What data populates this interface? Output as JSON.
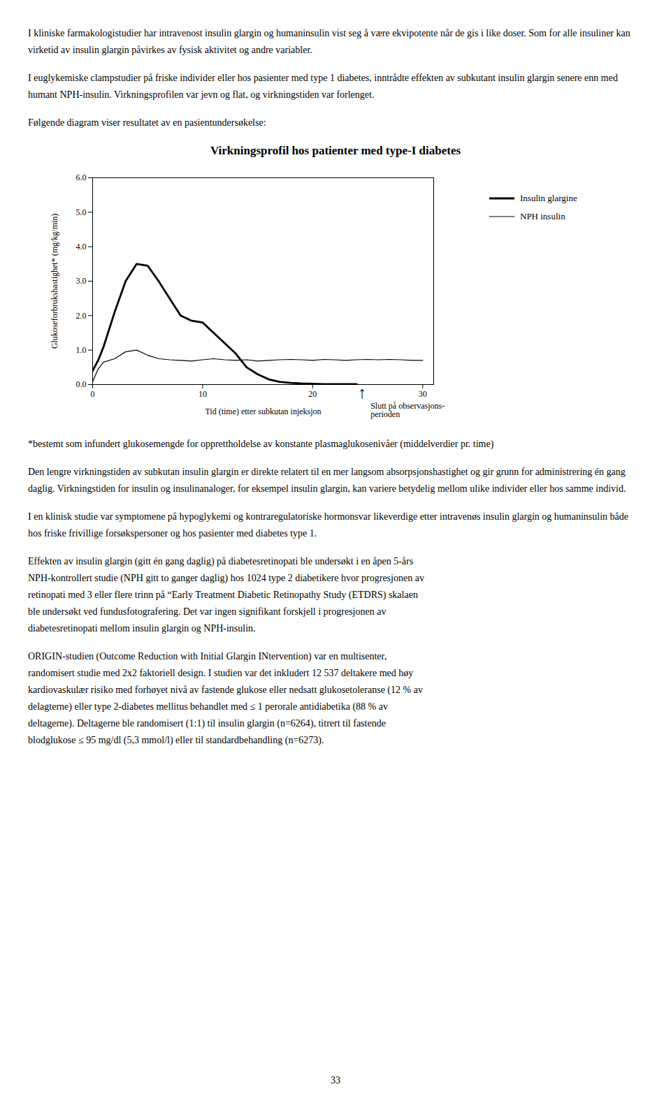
{
  "text_before": [
    [
      "I kliniske farmakologistudier har intravenost insulin glargin og humaninsulin vist seg å være ekvipotente når de gis i like doser. Som for alle insuliner kan virketid av insulin glargin påvirkes av fysisk aktivitet og andre variabler."
    ],
    [
      "I euglykemiske clampstudier på friske individer eller hos pasienter med type 1 diabetes, inntrådte effekten av subkutant insulin glargin senere enn med humant NPH-insulin. Virkningsprofilen var jevn og flat, og virkningstiden var forlenget."
    ],
    [
      "Følgende diagram viser resultatet av en pasientundersøkelse:"
    ]
  ],
  "chart_data": {
    "type": "line",
    "title": "Virkningsprofil hos patienter med type-I diabetes",
    "xlabel": "Tid (time) etter subkutan injeksjon",
    "ylabel": "Glukoseforbrukshastighet* (mg/kg/min)",
    "xlim": [
      0,
      31
    ],
    "ylim": [
      0,
      6
    ],
    "xticks": [
      0,
      10,
      20,
      30
    ],
    "yticks": [
      0,
      1,
      2,
      3,
      4,
      5,
      6
    ],
    "legend": "right",
    "series": [
      {
        "name": "Insulin glargine",
        "color": "#000000",
        "x": [
          0,
          0.5,
          1,
          2,
          3,
          4,
          5,
          6,
          7,
          8,
          9,
          10,
          11,
          12,
          13,
          14,
          15,
          16,
          17,
          18,
          19,
          20,
          21,
          22,
          23,
          24
        ],
        "values": [
          0.4,
          0.7,
          1.1,
          2.1,
          3.0,
          3.5,
          3.45,
          3.0,
          2.5,
          2.0,
          1.85,
          1.8,
          1.5,
          1.2,
          0.9,
          0.5,
          0.3,
          0.15,
          0.08,
          0.05,
          0.03,
          0.02,
          0.01,
          0.01,
          0.01,
          0.01
        ]
      },
      {
        "name": "NPH insulin",
        "color": "#000000",
        "x": [
          0,
          0.5,
          1,
          2,
          3,
          4,
          5,
          6,
          7,
          8,
          9,
          10,
          11,
          12,
          13,
          14,
          15,
          16,
          17,
          18,
          19,
          20,
          21,
          22,
          23,
          24,
          25,
          26,
          27,
          28,
          29,
          30
        ],
        "values": [
          0.08,
          0.45,
          0.65,
          0.75,
          0.95,
          1.0,
          0.85,
          0.75,
          0.72,
          0.7,
          0.68,
          0.72,
          0.75,
          0.72,
          0.7,
          0.72,
          0.68,
          0.7,
          0.72,
          0.73,
          0.72,
          0.7,
          0.73,
          0.72,
          0.7,
          0.72,
          0.73,
          0.72,
          0.73,
          0.72,
          0.7,
          0.7
        ]
      }
    ],
    "annotation": {
      "x": 24.5,
      "symbol": "↑",
      "text": [
        "Slutt på observasjons-",
        "perioden"
      ]
    }
  },
  "footnote": "*bestemt som infundert glukosemengde for opprettholdelse av konstante plasmaglukosenivåer (middelverdier pr. time)",
  "text_after": [
    [
      "Den lengre virkningstiden av subkutan insulin glargin er direkte relatert til en mer langsom absorpsjonshastighet og gir grunn for administrering én gang daglig. Virkningstiden for insulin og insulinanaloger, for eksempel insulin glargin, kan variere betydelig mellom ulike individer eller hos samme individ."
    ],
    [
      "I en klinisk studie var symptomene på hypoglykemi og kontraregulatoriske hormonsvar likeverdige etter intravenøs insulin glargin og humaninsulin både hos friske frivillige forsøkspersoner og hos pasienter med diabetes type 1."
    ],
    [
      "Effekten av insulin glargin (gitt én gang daglig) på diabetesretinopati ble undersøkt i en åpen 5-års",
      "NPH-kontrollert studie (NPH gitt to ganger daglig) hos 1024 type 2 diabetikere hvor progresjonen av",
      "retinopati med 3 eller flere trinn på “Early Treatment Diabetic Retinopathy Study (ETDRS) skalaen",
      "ble undersøkt ved fundusfotografering. Det var ingen signifikant forskjell i progresjonen av",
      "diabetesretinopati mellom insulin glargin og NPH-insulin."
    ],
    [
      "ORIGIN-studien (Outcome Reduction with Initial Glargin INtervention) var en multisenter,",
      "randomisert studie med 2x2 faktoriell design. I studien var det inkludert 12 537 deltakere med høy",
      "kardiovaskulær risiko med forhøyet nivå av fastende glukose eller nedsatt glukosetoleranse (12 % av",
      "delagterne) eller type 2-diabetes mellitus behandlet med ≤ 1 perorale antidiabetika (88 % av",
      "deltagerne). Deltagerne ble randomisert (1:1) til insulin glargin (n=6264), titrert til fastende",
      "blodglukose ≤ 95 mg/dl (5,3 mmol/l) eller til standardbehandling (n=6273)."
    ]
  ],
  "page_number": "33"
}
